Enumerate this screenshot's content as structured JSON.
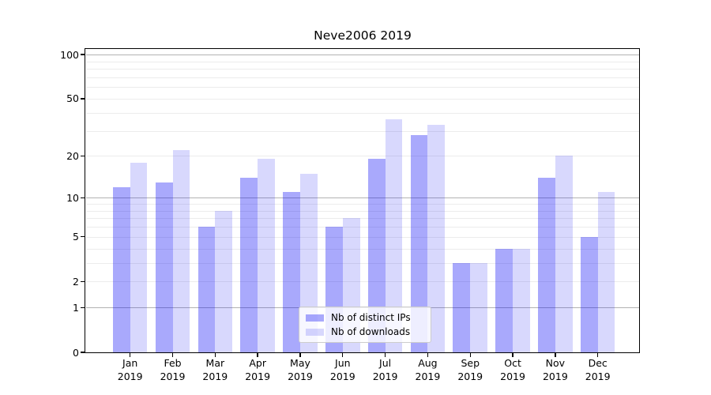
{
  "title": "Neve2006 2019",
  "chart_data": {
    "type": "bar",
    "title": "Neve2006 2019",
    "categories": [
      "Jan 2019",
      "Feb 2019",
      "Mar 2019",
      "Apr 2019",
      "May 2019",
      "Jun 2019",
      "Jul 2019",
      "Aug 2019",
      "Sep 2019",
      "Oct 2019",
      "Nov 2019",
      "Dec 2019"
    ],
    "x_months": [
      "Jan",
      "Feb",
      "Mar",
      "Apr",
      "May",
      "Jun",
      "Jul",
      "Aug",
      "Sep",
      "Oct",
      "Nov",
      "Dec"
    ],
    "x_year": "2019",
    "series": [
      {
        "name": "Nb of distinct IPs",
        "color": "rgba(10,10,245,0.35)",
        "values": [
          12,
          13,
          6,
          14,
          11,
          6,
          19,
          28,
          3,
          4,
          14,
          5
        ]
      },
      {
        "name": "Nb of downloads",
        "color": "rgba(10,10,245,0.16)",
        "values": [
          18,
          22,
          8,
          19,
          15,
          7,
          36,
          33,
          3,
          4,
          20,
          11
        ]
      }
    ],
    "yscale": "log10(1+v)",
    "ylim": [
      0,
      110
    ],
    "y_ticks": [
      0,
      1,
      2,
      5,
      10,
      20,
      50,
      100
    ],
    "grid": {
      "major_lines": [
        1,
        10,
        100
      ],
      "minor_lines": [
        2,
        3,
        4,
        5,
        6,
        7,
        8,
        9,
        20,
        30,
        40,
        50,
        60,
        70,
        80,
        90
      ],
      "major_color": "#b3b3b3",
      "minor_color": "#ececec"
    },
    "legend_position": "lower center",
    "xlabel": "",
    "ylabel": ""
  }
}
